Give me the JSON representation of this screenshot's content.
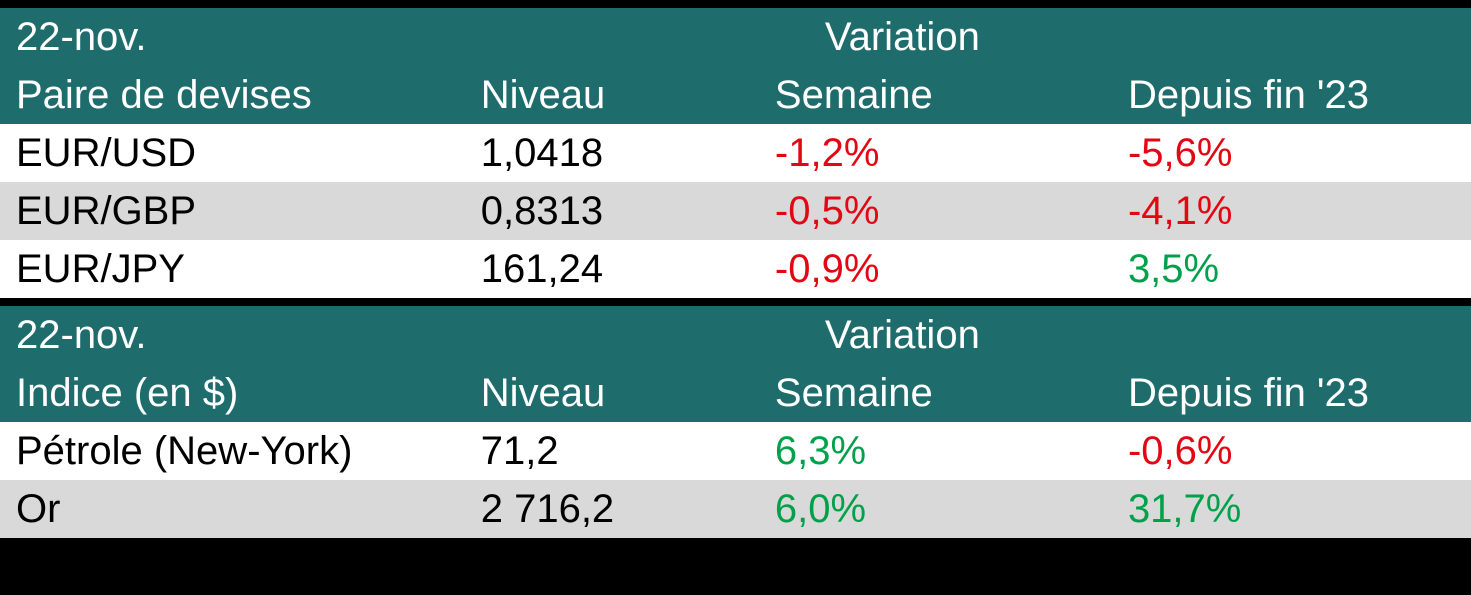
{
  "colors": {
    "header_bg": "#1f6c6d",
    "header_text": "#ffffff",
    "row_white": "#ffffff",
    "row_grey": "#d9d9d9",
    "negative": "#e30613",
    "positive": "#00a14b",
    "border": "#000000"
  },
  "section1": {
    "date": "22-nov.",
    "variation_label": "Variation",
    "columns": {
      "name": "Paire de devises",
      "level": "Niveau",
      "week": "Semaine",
      "ytd": "Depuis fin '23"
    },
    "rows": [
      {
        "name": "EUR/USD",
        "level": " 1,0418",
        "week": "-1,2%",
        "week_sign": "neg",
        "ytd": "-5,6%",
        "ytd_sign": "neg",
        "bg": "row-white"
      },
      {
        "name": "EUR/GBP",
        "level": "0,8313",
        "week": "-0,5%",
        "week_sign": "neg",
        "ytd": "-4,1%",
        "ytd_sign": "neg",
        "bg": "row-grey"
      },
      {
        "name": "EUR/JPY",
        "level": "161,24",
        "week": "-0,9%",
        "week_sign": "neg",
        "ytd": "3,5%",
        "ytd_sign": "pos",
        "bg": "row-white"
      }
    ]
  },
  "section2": {
    "date": "22-nov.",
    "variation_label": "Variation",
    "columns": {
      "name": "Indice (en $)",
      "level": "Niveau",
      "week": "Semaine",
      "ytd": "Depuis fin '23"
    },
    "rows": [
      {
        "name": "Pétrole (New-York)",
        "level": "71,2",
        "week": "6,3%",
        "week_sign": "pos",
        "ytd": "-0,6%",
        "ytd_sign": "neg",
        "bg": "row-white"
      },
      {
        "name": "Or",
        "level": "2 716,2",
        "week": "6,0%",
        "week_sign": "pos",
        "ytd": "31,7%",
        "ytd_sign": "pos",
        "bg": "row-grey"
      }
    ]
  }
}
